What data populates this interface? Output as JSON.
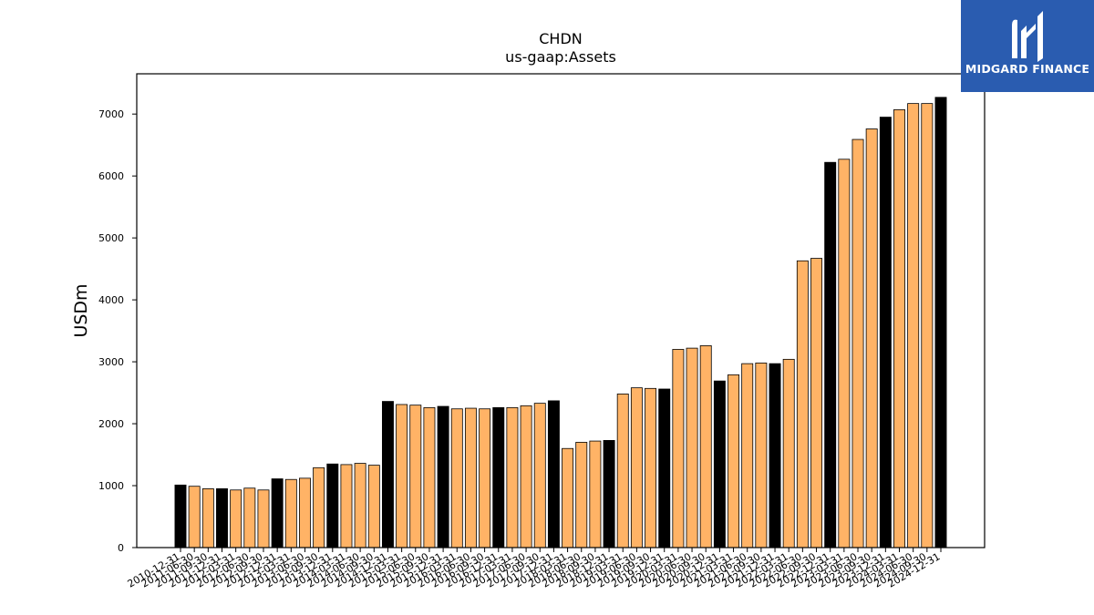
{
  "chart_data": {
    "type": "bar",
    "title": "CHDN",
    "subtitle": "us-gaap:Assets",
    "xlabel": "",
    "ylabel": "USDm",
    "ylim": [
      0,
      7650
    ],
    "yticks": [
      0,
      1000,
      2000,
      3000,
      4000,
      5000,
      6000,
      7000
    ],
    "grid": false,
    "colors": {
      "annual": "#000000",
      "quarterly": "#ffb366",
      "edge": "#000000"
    },
    "categories": [
      "2010-12-31",
      "2011-06-30",
      "2011-09-30",
      "2011-12-31",
      "2012-03-31",
      "2012-06-30",
      "2012-09-30",
      "2012-12-31",
      "2013-03-31",
      "2013-06-30",
      "2013-09-30",
      "2013-12-31",
      "2014-03-31",
      "2014-06-30",
      "2014-09-30",
      "2014-12-31",
      "2015-03-31",
      "2015-06-30",
      "2015-09-30",
      "2015-12-31",
      "2016-03-31",
      "2016-06-30",
      "2016-09-30",
      "2016-12-31",
      "2017-03-31",
      "2017-06-30",
      "2017-09-30",
      "2017-12-31",
      "2018-03-31",
      "2018-06-30",
      "2018-09-30",
      "2018-12-31",
      "2019-03-31",
      "2019-06-30",
      "2019-09-30",
      "2019-12-31",
      "2020-03-31",
      "2020-06-30",
      "2020-09-30",
      "2020-12-31",
      "2021-03-31",
      "2021-06-30",
      "2021-09-30",
      "2021-12-31",
      "2022-03-31",
      "2022-06-30",
      "2022-09-30",
      "2022-12-31",
      "2023-03-31",
      "2023-06-30",
      "2023-09-30",
      "2023-12-31",
      "2024-03-31",
      "2024-06-30",
      "2024-09-30",
      "2024-12-31"
    ],
    "values": [
      1010,
      990,
      950,
      950,
      930,
      960,
      930,
      1110,
      1100,
      1120,
      1290,
      1350,
      1340,
      1360,
      1330,
      2360,
      2310,
      2300,
      2260,
      2280,
      2240,
      2250,
      2240,
      2260,
      2260,
      2290,
      2330,
      2370,
      1600,
      1700,
      1720,
      1730,
      2480,
      2580,
      2570,
      2560,
      3200,
      3220,
      3260,
      2690,
      2790,
      2970,
      2980,
      2970,
      3040,
      4630,
      4670,
      6220,
      6270,
      6590,
      6760,
      6950,
      7070,
      7170,
      7170,
      7270
    ],
    "annual_flags": [
      1,
      0,
      0,
      1,
      0,
      0,
      0,
      1,
      0,
      0,
      0,
      1,
      0,
      0,
      0,
      1,
      0,
      0,
      0,
      1,
      0,
      0,
      0,
      1,
      0,
      0,
      0,
      1,
      0,
      0,
      0,
      1,
      0,
      0,
      0,
      1,
      0,
      0,
      0,
      1,
      0,
      0,
      0,
      1,
      0,
      0,
      0,
      1,
      0,
      0,
      0,
      1,
      0,
      0,
      0,
      1
    ]
  },
  "logo": {
    "text": "MIDGARD FINANCE",
    "icon": "midgard-logo-icon"
  }
}
